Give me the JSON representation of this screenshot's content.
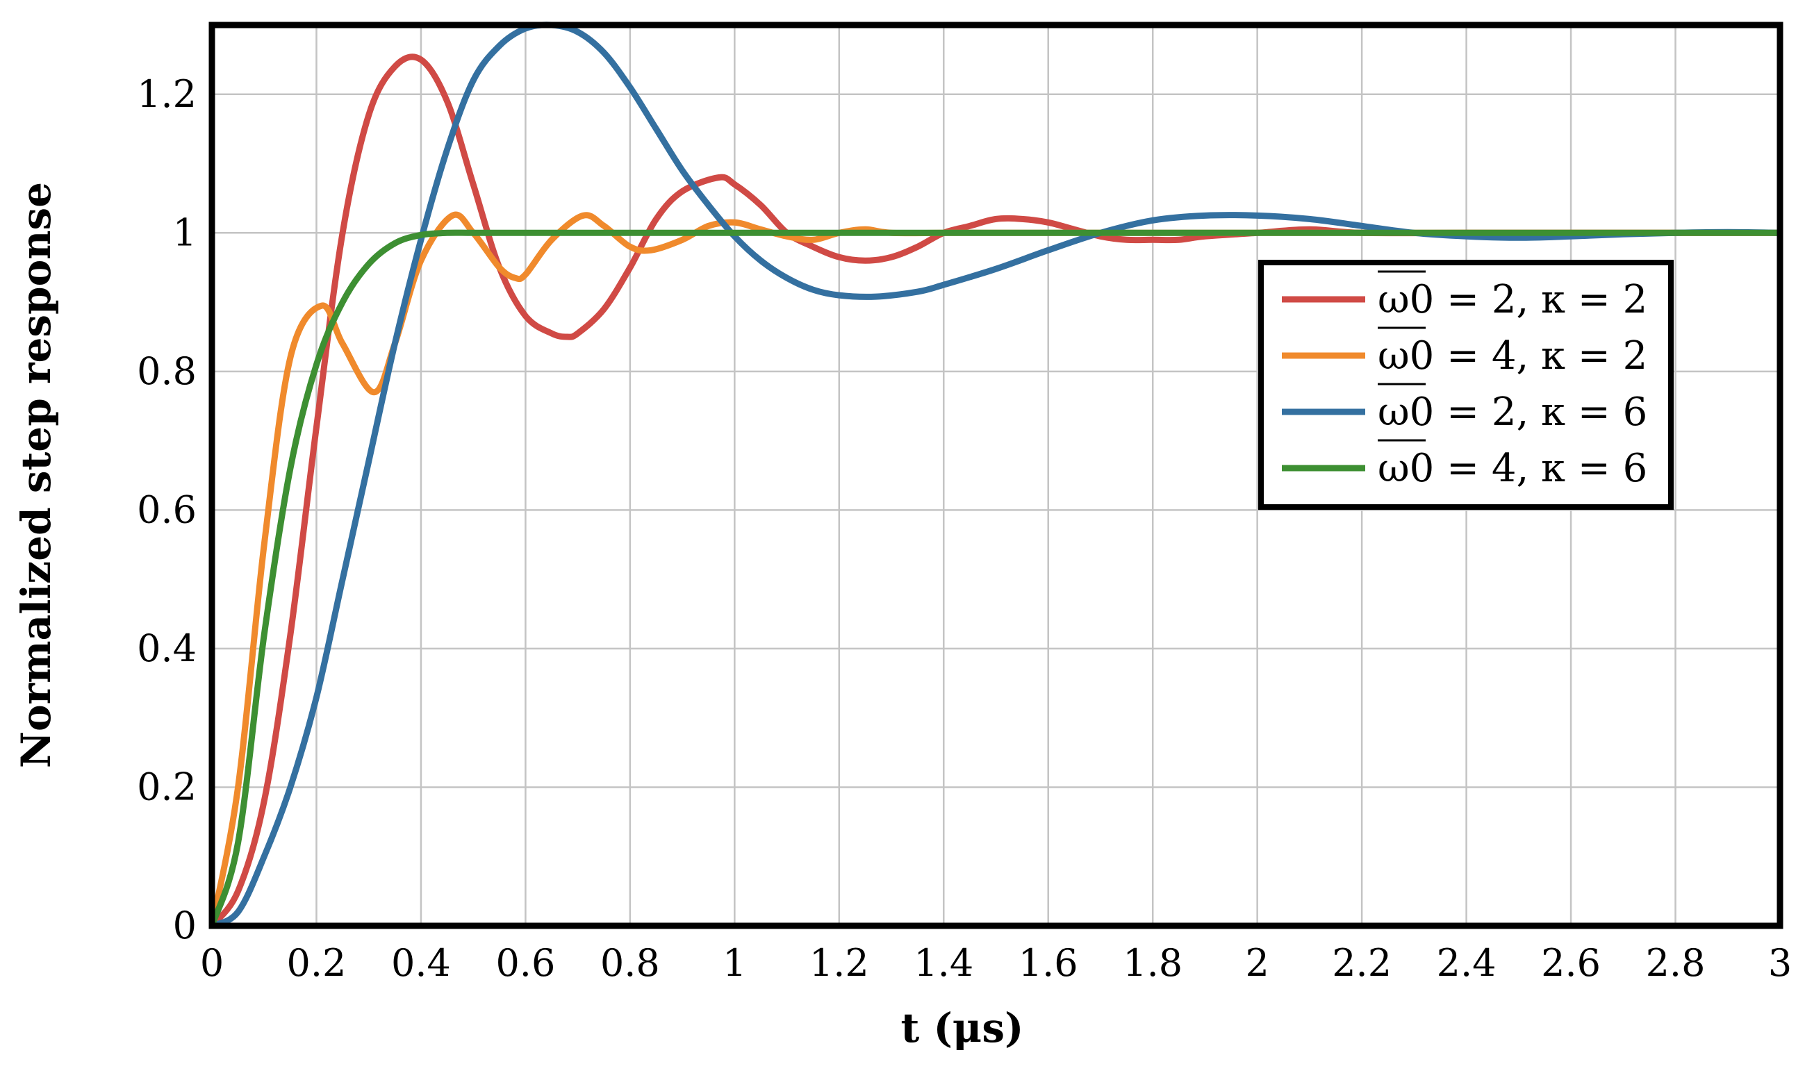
{
  "chart_data": {
    "type": "line",
    "title": "",
    "xlabel": "t (μs)",
    "ylabel": "Normalized step response",
    "xlim": [
      0,
      3
    ],
    "ylim": [
      0,
      1.3
    ],
    "grid": true,
    "legend_position": "right",
    "x_ticks": [
      "0",
      "0.2",
      "0.4",
      "0.6",
      "0.8",
      "1",
      "1.2",
      "1.4",
      "1.6",
      "1.8",
      "2",
      "2.2",
      "2.4",
      "2.6",
      "2.8",
      "3"
    ],
    "y_ticks": [
      "0",
      "0.2",
      "0.4",
      "0.6",
      "0.8",
      "1",
      "1.2"
    ],
    "series": [
      {
        "name": "ω0 = 2, κ = 2",
        "color": "#d04a45",
        "x": [
          0,
          0.05,
          0.1,
          0.15,
          0.2,
          0.25,
          0.3,
          0.35,
          0.4,
          0.45,
          0.5,
          0.55,
          0.6,
          0.65,
          0.68,
          0.7,
          0.75,
          0.8,
          0.85,
          0.9,
          0.97,
          1.0,
          1.05,
          1.1,
          1.15,
          1.2,
          1.25,
          1.3,
          1.35,
          1.4,
          1.45,
          1.5,
          1.55,
          1.6,
          1.65,
          1.7,
          1.75,
          1.8,
          1.85,
          1.9,
          2.0,
          2.1,
          2.2,
          2.4,
          2.6,
          2.8,
          3.0
        ],
        "y": [
          0,
          0.05,
          0.18,
          0.42,
          0.72,
          1.0,
          1.17,
          1.24,
          1.25,
          1.19,
          1.07,
          0.95,
          0.88,
          0.855,
          0.85,
          0.855,
          0.89,
          0.95,
          1.02,
          1.06,
          1.08,
          1.07,
          1.04,
          1.0,
          0.98,
          0.965,
          0.96,
          0.965,
          0.98,
          1.0,
          1.01,
          1.02,
          1.02,
          1.015,
          1.005,
          0.995,
          0.99,
          0.99,
          0.99,
          0.995,
          1.0,
          1.005,
          1.0,
          1.0,
          1.0,
          1.0,
          1.0
        ]
      },
      {
        "name": "ω0 = 4, κ = 2",
        "color": "#f08a2c",
        "x": [
          0,
          0.05,
          0.1,
          0.15,
          0.21,
          0.25,
          0.31,
          0.35,
          0.4,
          0.46,
          0.5,
          0.55,
          0.58,
          0.6,
          0.65,
          0.71,
          0.75,
          0.8,
          0.84,
          0.9,
          0.95,
          1.0,
          1.05,
          1.1,
          1.15,
          1.2,
          1.25,
          1.3,
          1.4,
          1.5,
          1.6,
          1.8,
          2.0,
          2.5,
          3.0
        ],
        "y": [
          0,
          0.2,
          0.55,
          0.82,
          0.895,
          0.84,
          0.77,
          0.84,
          0.96,
          1.025,
          1.0,
          0.95,
          0.935,
          0.94,
          0.99,
          1.025,
          1.01,
          0.98,
          0.975,
          0.99,
          1.01,
          1.015,
          1.005,
          0.995,
          0.99,
          1.0,
          1.005,
          1.0,
          1.0,
          1.0,
          1.0,
          1.0,
          1.0,
          1.0,
          1.0
        ]
      },
      {
        "name": "ω0 = 2, κ = 6",
        "color": "#3470a0",
        "x": [
          0,
          0.05,
          0.1,
          0.15,
          0.2,
          0.25,
          0.3,
          0.35,
          0.4,
          0.45,
          0.5,
          0.55,
          0.6,
          0.65,
          0.7,
          0.75,
          0.8,
          0.85,
          0.9,
          0.95,
          1.0,
          1.05,
          1.1,
          1.15,
          1.2,
          1.27,
          1.35,
          1.4,
          1.5,
          1.6,
          1.7,
          1.8,
          1.9,
          2.0,
          2.1,
          2.2,
          2.3,
          2.4,
          2.5,
          2.6,
          2.7,
          2.8,
          2.9,
          3.0
        ],
        "y": [
          0,
          0.02,
          0.1,
          0.2,
          0.33,
          0.5,
          0.67,
          0.84,
          0.99,
          1.12,
          1.22,
          1.27,
          1.295,
          1.3,
          1.29,
          1.26,
          1.21,
          1.15,
          1.09,
          1.04,
          0.995,
          0.96,
          0.935,
          0.918,
          0.91,
          0.908,
          0.915,
          0.925,
          0.948,
          0.975,
          1.0,
          1.018,
          1.025,
          1.025,
          1.02,
          1.01,
          1.0,
          0.995,
          0.993,
          0.995,
          0.998,
          1.0,
          1.001,
          1.0
        ]
      },
      {
        "name": "ω0 = 4, κ = 6",
        "color": "#3d8f32",
        "x": [
          0,
          0.05,
          0.1,
          0.15,
          0.2,
          0.25,
          0.3,
          0.35,
          0.4,
          0.45,
          0.5,
          0.6,
          0.7,
          0.8,
          1.0,
          1.5,
          2.0,
          2.5,
          3.0
        ],
        "y": [
          0,
          0.12,
          0.42,
          0.66,
          0.81,
          0.9,
          0.955,
          0.985,
          0.997,
          1.0,
          1.0,
          1.0,
          1.0,
          1.0,
          1.0,
          1.0,
          1.0,
          1.0,
          1.0
        ]
      }
    ]
  }
}
